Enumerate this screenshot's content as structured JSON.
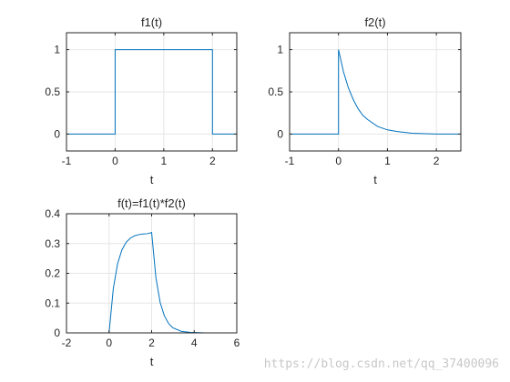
{
  "figure": {
    "watermark": "https://blog.csdn.net/qq_37400096",
    "line_color": "#0072bd",
    "grid_color": "#e6e6e6",
    "axes_color": "#262626"
  },
  "chart_data": [
    {
      "type": "line",
      "title": "f1(t)",
      "xlabel": "t",
      "ylabel": "",
      "xlim": [
        -1,
        2.5
      ],
      "ylim": [
        -0.2,
        1.2
      ],
      "xticks": [
        -1,
        0,
        1,
        2
      ],
      "xtick_labels": [
        "-1",
        "0",
        "1",
        "2"
      ],
      "yticks": [
        0,
        0.5,
        1
      ],
      "ytick_labels": [
        "0",
        "0.5",
        "1"
      ],
      "grid": true,
      "series": [
        {
          "x": [
            -1,
            0,
            0,
            2,
            2,
            2.5
          ],
          "y": [
            0,
            0,
            1,
            1,
            0,
            0
          ]
        }
      ]
    },
    {
      "type": "line",
      "title": "f2(t)",
      "xlabel": "t",
      "ylabel": "",
      "xlim": [
        -1,
        2.5
      ],
      "ylim": [
        -0.2,
        1.2
      ],
      "xticks": [
        -1,
        0,
        1,
        2
      ],
      "xtick_labels": [
        "-1",
        "0",
        "1",
        "2"
      ],
      "yticks": [
        0,
        0.5,
        1
      ],
      "ytick_labels": [
        "0",
        "0.5",
        "1"
      ],
      "grid": true,
      "series": [
        {
          "x": [
            -1,
            0,
            0,
            0.1,
            0.2,
            0.3,
            0.4,
            0.5,
            0.6,
            0.8,
            1.0,
            1.2,
            1.5,
            2.0,
            2.5
          ],
          "y": [
            0,
            0,
            1,
            0.74,
            0.55,
            0.41,
            0.3,
            0.22,
            0.17,
            0.09,
            0.05,
            0.03,
            0.01,
            0.0,
            0.0
          ]
        }
      ]
    },
    {
      "type": "line",
      "title": "f(t)=f1(t)*f2(t)",
      "xlabel": "t",
      "ylabel": "",
      "xlim": [
        -2,
        6
      ],
      "ylim": [
        0,
        0.4
      ],
      "xticks": [
        -2,
        0,
        2,
        4,
        6
      ],
      "xtick_labels": [
        "-2",
        "0",
        "2",
        "4",
        "6"
      ],
      "yticks": [
        0,
        0.1,
        0.2,
        0.3,
        0.4
      ],
      "ytick_labels": [
        "0",
        "0.1",
        "0.2",
        "0.3",
        "0.4"
      ],
      "grid": true,
      "series": [
        {
          "x": [
            -2,
            0,
            0.2,
            0.4,
            0.6,
            0.8,
            1.0,
            1.2,
            1.4,
            1.6,
            1.8,
            2.0,
            2.2,
            2.4,
            2.6,
            2.8,
            3.0,
            3.4,
            3.8,
            4.5,
            5.0
          ],
          "y": [
            0,
            0,
            0.149,
            0.232,
            0.278,
            0.304,
            0.318,
            0.326,
            0.33,
            0.332,
            0.333,
            0.337,
            0.186,
            0.102,
            0.057,
            0.031,
            0.017,
            0.005,
            0.002,
            0.0,
            0.0
          ]
        }
      ]
    }
  ]
}
